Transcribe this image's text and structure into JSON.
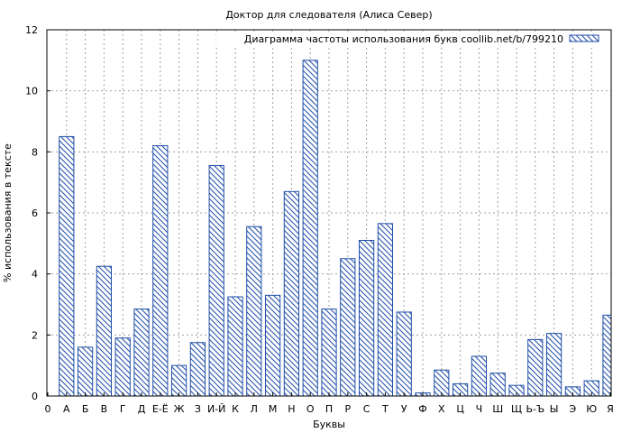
{
  "chart_data": {
    "type": "bar",
    "title": "Доктор для следователя (Алиса Север)",
    "xlabel": "Буквы",
    "ylabel": "% использования в тексте",
    "ylim": [
      0,
      12
    ],
    "yticks": [
      0,
      2,
      4,
      6,
      8,
      10,
      12
    ],
    "grid": true,
    "legend_position": "top-right",
    "categories": [
      "0",
      "А",
      "Б",
      "В",
      "Г",
      "Д",
      "Е-Ё",
      "Ж",
      "З",
      "И-Й",
      "К",
      "Л",
      "М",
      "Н",
      "О",
      "П",
      "Р",
      "С",
      "Т",
      "У",
      "Ф",
      "Х",
      "Ц",
      "Ч",
      "Ш",
      "Щ",
      "Ь-Ъ",
      "Ы",
      "Э",
      "Ю",
      "Я"
    ],
    "series": [
      {
        "name": "Диаграмма частоты использования букв coollib.net/b/799210",
        "color": "#1f4ea8",
        "values": [
          0,
          8.5,
          1.6,
          4.25,
          1.9,
          2.85,
          8.2,
          1.0,
          1.75,
          7.55,
          3.25,
          5.55,
          3.3,
          6.7,
          11.0,
          2.85,
          4.5,
          5.1,
          5.65,
          2.75,
          0.1,
          0.85,
          0.4,
          1.3,
          0.75,
          0.35,
          1.85,
          2.05,
          0.3,
          0.5,
          2.65
        ]
      }
    ]
  }
}
